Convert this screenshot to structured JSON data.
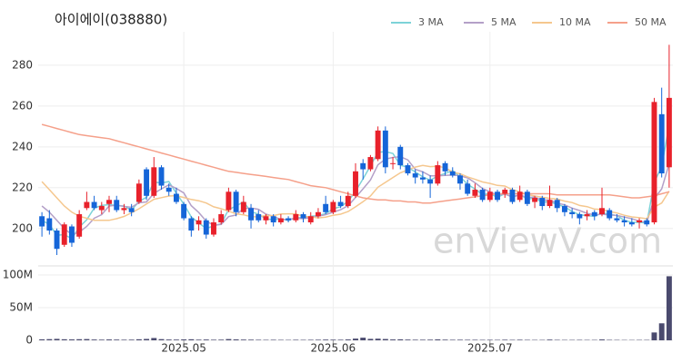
{
  "chart_data": {
    "type": "candlestick",
    "title": "아이에이(038880)",
    "watermark": "enViewV.com",
    "up_color": "#e8212b",
    "down_color": "#1565d8",
    "grid": true,
    "categories": [
      null,
      null,
      null,
      null,
      null,
      null,
      null,
      null,
      null,
      null,
      null,
      null,
      null,
      null,
      null,
      null,
      null,
      null,
      null,
      "2025.05",
      null,
      null,
      null,
      null,
      null,
      null,
      null,
      null,
      null,
      null,
      null,
      null,
      null,
      null,
      null,
      null,
      null,
      null,
      null,
      "2025.06",
      null,
      null,
      null,
      null,
      null,
      null,
      null,
      null,
      null,
      null,
      null,
      null,
      null,
      null,
      null,
      null,
      null,
      null,
      null,
      null,
      "2025.07",
      null,
      null,
      null,
      null,
      null,
      null,
      null,
      null,
      null,
      null,
      null,
      null,
      null,
      null,
      null,
      null,
      null,
      null,
      null,
      null,
      null,
      null,
      null,
      null
    ],
    "open": [
      206,
      205,
      199,
      192,
      201,
      196,
      210,
      213,
      209,
      212,
      214,
      209,
      210,
      213,
      229,
      216,
      230,
      220,
      217,
      212,
      205,
      202,
      204,
      197,
      203,
      209,
      218,
      208,
      210,
      207,
      204,
      206,
      203,
      205,
      204,
      207,
      203,
      206,
      212,
      208,
      213,
      211,
      216,
      232,
      229,
      234,
      248,
      232,
      240,
      231,
      227,
      225,
      224,
      222,
      232,
      228,
      226,
      222,
      216,
      219,
      214,
      218,
      217,
      219,
      214,
      218,
      213,
      215,
      211,
      214,
      211,
      208,
      207,
      206,
      208,
      207,
      209,
      205,
      204,
      203,
      203,
      204,
      203,
      256,
      230
    ],
    "high": [
      208,
      209,
      200,
      203,
      202,
      209,
      218,
      216,
      213,
      216,
      216,
      212,
      212,
      224,
      230,
      235,
      231,
      222,
      220,
      213,
      206,
      206,
      205,
      205,
      209,
      220,
      219,
      216,
      212,
      209,
      207,
      207,
      207,
      206,
      209,
      208,
      208,
      210,
      216,
      214,
      216,
      218,
      232,
      234,
      236,
      250,
      250,
      235,
      241,
      232,
      229,
      228,
      226,
      233,
      233,
      230,
      227,
      224,
      222,
      220,
      220,
      219,
      220,
      220,
      221,
      219,
      216,
      216,
      221,
      215,
      212,
      210,
      208,
      209,
      209,
      220,
      210,
      207,
      206,
      205,
      205,
      205,
      264,
      269,
      290
    ],
    "low": [
      196,
      197,
      187,
      191,
      191,
      195,
      209,
      209,
      207,
      208,
      208,
      207,
      206,
      212,
      214,
      215,
      219,
      216,
      212,
      204,
      196,
      199,
      195,
      196,
      202,
      208,
      206,
      207,
      200,
      203,
      202,
      201,
      202,
      203,
      203,
      203,
      202,
      205,
      207,
      207,
      210,
      210,
      215,
      224,
      228,
      233,
      227,
      229,
      229,
      226,
      222,
      222,
      215,
      221,
      226,
      225,
      219,
      216,
      215,
      213,
      213,
      213,
      215,
      212,
      213,
      211,
      210,
      209,
      210,
      208,
      206,
      205,
      202,
      204,
      204,
      206,
      204,
      203,
      201,
      201,
      200,
      201,
      202,
      225,
      220
    ],
    "close": [
      201,
      199,
      190,
      202,
      193,
      207,
      213,
      210,
      211,
      214,
      209,
      210,
      208,
      222,
      216,
      230,
      221,
      218,
      213,
      205,
      199,
      204,
      197,
      203,
      207,
      218,
      208,
      213,
      204,
      204,
      206,
      203,
      205,
      204,
      207,
      205,
      206,
      208,
      208,
      213,
      211,
      216,
      228,
      229,
      235,
      248,
      230,
      232,
      231,
      227,
      225,
      224,
      222,
      231,
      228,
      226,
      222,
      217,
      219,
      214,
      218,
      214,
      219,
      213,
      218,
      212,
      215,
      211,
      214,
      210,
      208,
      207,
      205,
      207,
      206,
      210,
      205,
      204,
      203,
      202,
      204,
      202,
      262,
      227,
      264
    ],
    "ylim": [
      183,
      296.4
    ],
    "yticks": [
      200,
      220,
      240,
      260,
      280
    ],
    "series": [
      {
        "name": "3 MA",
        "color": "#7dd3d8",
        "values": [
          204,
          202,
          196.7,
          197,
          195,
          200.7,
          204.3,
          210,
          211.3,
          211.7,
          211.3,
          211,
          209,
          213.3,
          215.3,
          222.7,
          222.3,
          223,
          217.3,
          212,
          205.7,
          202.7,
          200,
          201.3,
          202.3,
          209.3,
          211,
          213,
          208.3,
          207,
          204.7,
          204.3,
          204.7,
          204,
          205.3,
          205.3,
          206,
          206.3,
          207.3,
          209.7,
          210.7,
          213.3,
          218.3,
          224.3,
          230.7,
          237.3,
          237.7,
          236.7,
          231,
          230,
          227.7,
          225.3,
          223.7,
          225.7,
          227,
          228.3,
          225.3,
          221.7,
          219.3,
          216.7,
          217,
          215.3,
          217,
          215.3,
          216.7,
          214.3,
          215,
          212.7,
          213.3,
          211.7,
          210.7,
          208.3,
          206.7,
          206.3,
          206,
          207.7,
          207,
          206.3,
          204,
          203,
          203,
          202.7,
          222.7,
          230.3,
          251
        ]
      },
      {
        "name": "5 MA",
        "color": "#b4a0c8",
        "values": [
          211,
          208,
          204,
          200,
          197,
          198.2,
          201,
          205,
          206.8,
          211,
          211.4,
          210.8,
          210.4,
          212.6,
          213,
          217.2,
          219.4,
          221.4,
          219.6,
          217.4,
          211.2,
          207.8,
          203.6,
          201.6,
          202,
          205.8,
          206.6,
          209.8,
          210,
          209.4,
          207,
          206,
          204.4,
          204.4,
          205,
          204.8,
          205.4,
          206,
          206.8,
          208,
          209.2,
          211.2,
          215.2,
          219.4,
          223.8,
          231.2,
          234,
          234.8,
          235.2,
          233.6,
          229,
          227.8,
          225.8,
          225.8,
          226,
          226.2,
          225.8,
          224.8,
          222.4,
          219.6,
          218,
          216.4,
          216.8,
          215.6,
          216.4,
          215.2,
          215.4,
          213.8,
          214,
          212.4,
          211.6,
          210,
          208.8,
          207.4,
          206.6,
          207,
          206.6,
          206.4,
          205.6,
          204.8,
          203.6,
          203,
          214.6,
          219.4,
          231.8
        ]
      },
      {
        "name": "10 MA",
        "color": "#f5c78e",
        "values": [
          223,
          219,
          215,
          211,
          208,
          206,
          205,
          204,
          204,
          204,
          204.8,
          205.9,
          207.7,
          209.7,
          212,
          214.3,
          215.1,
          215.9,
          216.1,
          215.2,
          214.2,
          213.6,
          212.5,
          210.6,
          209.7,
          208.5,
          207.2,
          206.7,
          205.8,
          205.7,
          206.4,
          206.3,
          207.1,
          207.2,
          207.2,
          205.9,
          205.7,
          205.2,
          205.6,
          206.5,
          207,
          208.3,
          210.6,
          213.1,
          215.9,
          220.2,
          222.6,
          225,
          227.3,
          228.7,
          230.1,
          230.9,
          230.3,
          230.5,
          229.8,
          227.6,
          226.8,
          225.3,
          224.1,
          222.8,
          222.1,
          221.1,
          220.8,
          219,
          218,
          216.6,
          215.9,
          215.3,
          214.8,
          214.4,
          213.4,
          212.7,
          211.3,
          210.7,
          209.5,
          209.3,
          208.3,
          207.6,
          206.5,
          205.7,
          205.3,
          204.8,
          210.5,
          212.5,
          218.3
        ]
      },
      {
        "name": "50 MA",
        "color": "#f5a08a",
        "values": [
          251,
          250,
          249,
          248,
          247,
          246,
          245.5,
          245,
          244.5,
          244,
          243,
          242,
          241,
          240,
          239,
          238,
          237,
          236,
          235,
          234,
          233,
          232,
          231,
          230,
          229,
          228,
          227.5,
          227,
          226.5,
          226,
          225.5,
          225,
          224.5,
          224,
          223,
          222,
          221,
          220.5,
          220,
          219,
          218,
          217,
          216,
          215,
          214.5,
          214,
          214,
          213.5,
          213.5,
          213,
          213,
          212.5,
          212.5,
          213,
          213.5,
          214,
          214.5,
          215,
          215.5,
          216,
          216.5,
          217,
          217,
          217,
          217,
          217,
          217,
          217,
          217,
          216.5,
          216.5,
          216.5,
          216.5,
          216.5,
          216.5,
          216.5,
          216.5,
          216,
          215.5,
          215,
          215,
          215.5,
          216,
          217,
          218
        ]
      }
    ],
    "volume": {
      "color": "#4a4a6e",
      "values": [
        1500000,
        1800000,
        2200000,
        1600000,
        1400000,
        1700000,
        1900000,
        1200000,
        1000000,
        1300000,
        1100000,
        900000,
        1000000,
        1600000,
        2100000,
        3500000,
        1800000,
        1200000,
        1100000,
        1400000,
        1600000,
        1000000,
        1200000,
        900000,
        1000000,
        1900000,
        1400000,
        1100000,
        1000000,
        800000,
        700000,
        800000,
        700000,
        600000,
        800000,
        700000,
        800000,
        900000,
        1100000,
        1000000,
        900000,
        1300000,
        2600000,
        4000000,
        2200000,
        2500000,
        2000000,
        1300000,
        1500000,
        1100000,
        900000,
        900000,
        1000000,
        1400000,
        1000000,
        800000,
        900000,
        800000,
        800000,
        700000,
        800000,
        700000,
        900000,
        700000,
        900000,
        700000,
        600000,
        600000,
        1100000,
        700000,
        600000,
        600000,
        700000,
        600000,
        600000,
        1300000,
        700000,
        600000,
        500000,
        500000,
        600000,
        600000,
        12000000,
        26000000,
        98000000
      ],
      "ylim": [
        0,
        108300000
      ],
      "yticks": [
        0,
        {
          "value": 50000000,
          "label": "50M"
        },
        {
          "value": 100000000,
          "label": "100M"
        }
      ]
    }
  }
}
